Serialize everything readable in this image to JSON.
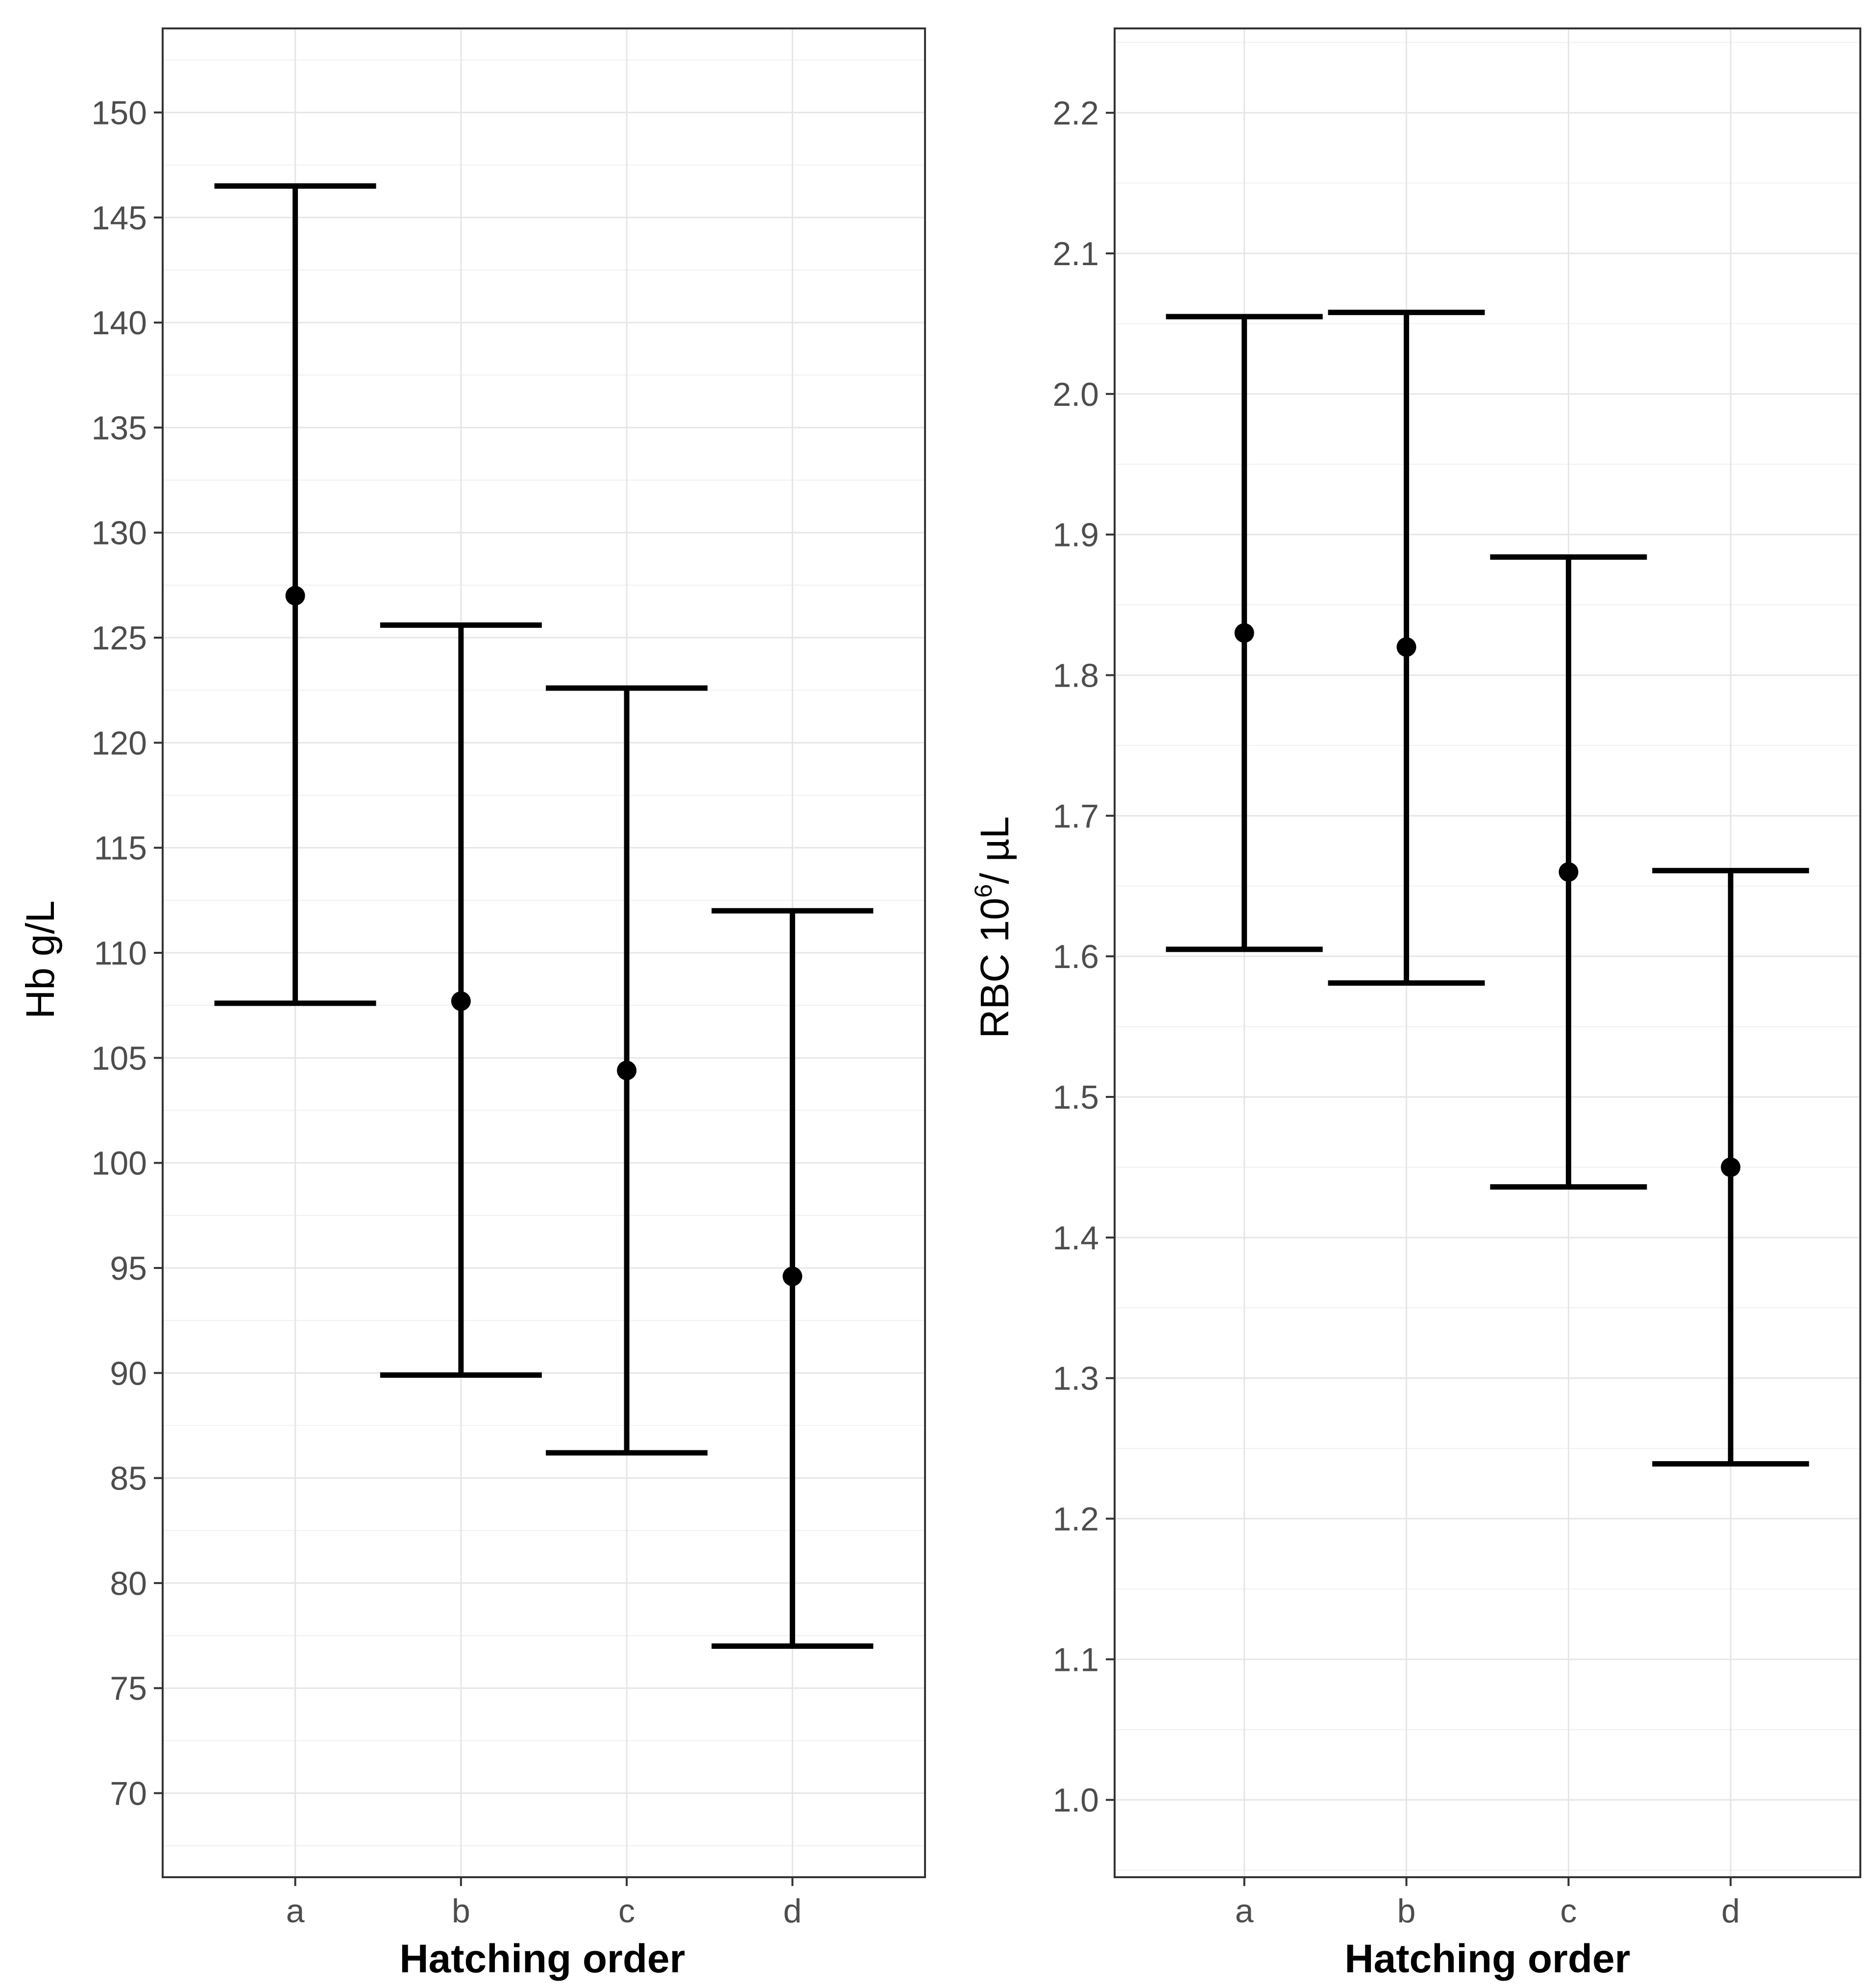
{
  "chart_data": [
    {
      "type": "errorbar",
      "categories": [
        "a",
        "b",
        "c",
        "d"
      ],
      "xlabel": "Hatching order",
      "ylabel": "Hb g/L",
      "ylim": [
        66,
        154
      ],
      "yticks": [
        70,
        75,
        80,
        85,
        90,
        95,
        100,
        105,
        110,
        115,
        120,
        125,
        130,
        135,
        140,
        145,
        150
      ],
      "ytick_labels": [
        "70",
        "75",
        "80",
        "85",
        "90",
        "95",
        "100",
        "105",
        "110",
        "115",
        "120",
        "125",
        "130",
        "135",
        "140",
        "145",
        "150"
      ],
      "grid": true,
      "series": [
        {
          "mean": [
            127,
            107.7,
            104.4,
            94.6
          ],
          "lower": [
            107.6,
            89.9,
            86.2,
            77
          ],
          "upper": [
            146.5,
            125.6,
            122.6,
            112
          ]
        }
      ]
    },
    {
      "type": "errorbar",
      "categories": [
        "a",
        "b",
        "c",
        "d"
      ],
      "xlabel": "Hatching order",
      "ylabel_main": "RBC  10",
      "ylabel_sup": "6",
      "ylabel_tail": "/ µL",
      "ylim": [
        0.945,
        2.26
      ],
      "yticks": [
        1.0,
        1.1,
        1.2,
        1.3,
        1.4,
        1.5,
        1.6,
        1.7,
        1.8,
        1.9,
        2.0,
        2.1,
        2.2
      ],
      "ytick_labels": [
        "1.0",
        "1.1",
        "1.2",
        "1.3",
        "1.4",
        "1.5",
        "1.6",
        "1.7",
        "1.8",
        "1.9",
        "2.0",
        "2.1",
        "2.2"
      ],
      "grid": true,
      "series": [
        {
          "mean": [
            1.83,
            1.82,
            1.66,
            1.45
          ],
          "lower": [
            1.605,
            1.581,
            1.436,
            1.239
          ],
          "upper": [
            2.055,
            2.058,
            1.884,
            1.661
          ]
        }
      ]
    }
  ]
}
